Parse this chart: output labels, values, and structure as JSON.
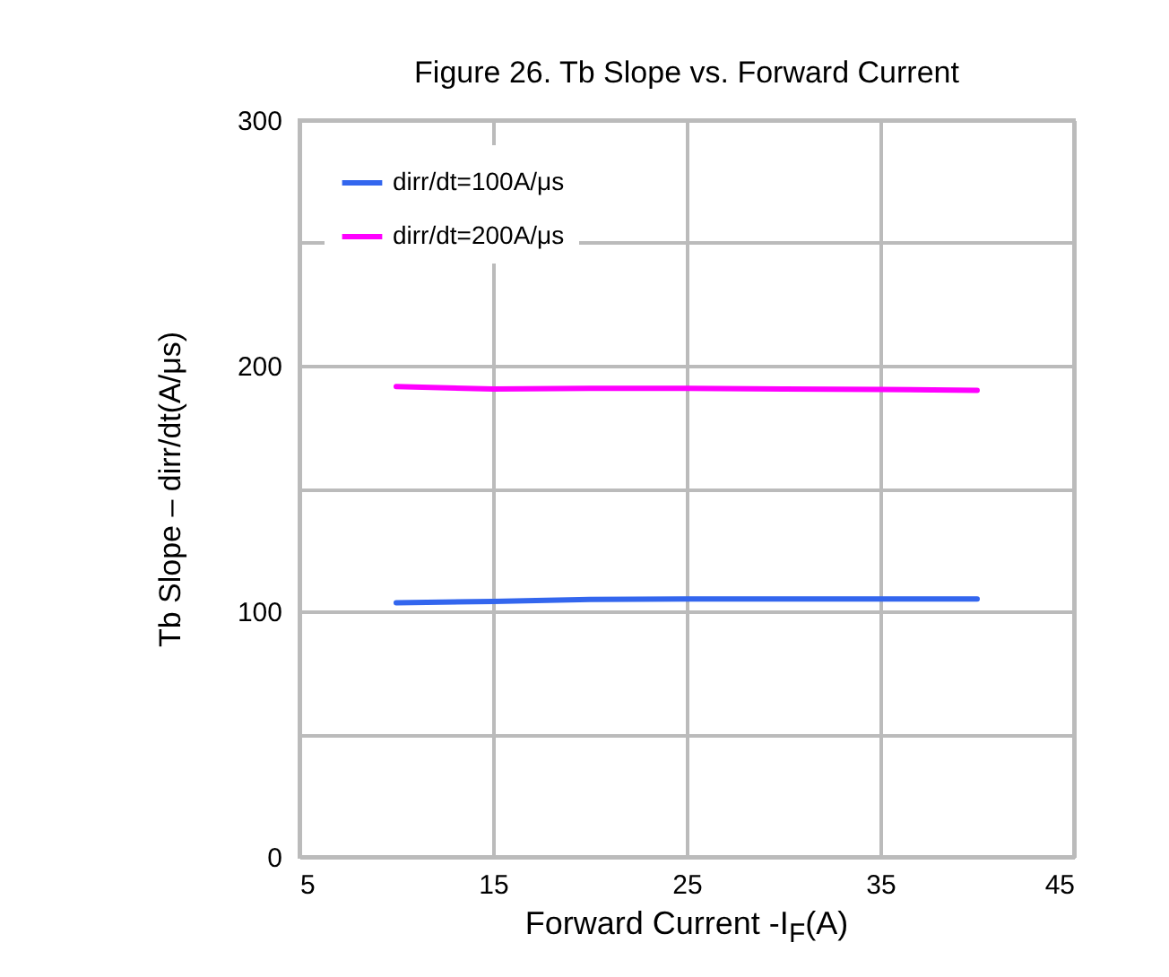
{
  "chart_data": {
    "type": "line",
    "title": "Figure 26. Tb Slope vs. Forward Current",
    "xlabel": "Forward Current -I$_{F}$(A)",
    "ylabel": "Tb Slope  –  dirr/dt(A/μs)",
    "x": [
      10,
      15,
      20,
      25,
      30,
      35,
      40
    ],
    "series": [
      {
        "name": "dirr/dt=100A/μs",
        "color": "#3366ee",
        "values": [
          103.5,
          104,
          104.8,
          105,
          105,
          105,
          105
        ]
      },
      {
        "name": "dirr/dt=200A/μs",
        "color": "#ff00ff",
        "values": [
          191.5,
          190.5,
          190.8,
          190.8,
          190.5,
          190.3,
          190
        ]
      }
    ],
    "xlim": [
      5,
      45
    ],
    "xticks": [
      5,
      15,
      25,
      35,
      45
    ],
    "ylim": [
      0,
      300
    ],
    "yticks": [
      0,
      {
        "value": 50,
        "label": null
      },
      100,
      {
        "value": 150,
        "label": null
      },
      200,
      {
        "value": 250,
        "label": null
      },
      300
    ],
    "grid": true,
    "legend": "top left",
    "marker": "none",
    "line_style": "solid"
  }
}
